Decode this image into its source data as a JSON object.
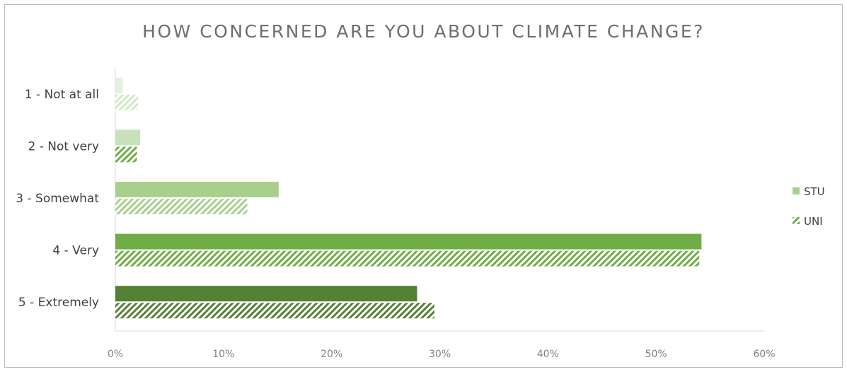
{
  "chart_data": {
    "type": "bar",
    "orientation": "horizontal",
    "title": "HOW CONCERNED ARE YOU ABOUT CLIMATE CHANGE?",
    "categories": [
      "1 - Not at all",
      "2 - Not very",
      "3 - Somewhat",
      "4 - Very",
      "5 - Extremely"
    ],
    "series": [
      {
        "name": "STU",
        "pattern": "solid",
        "values": [
          0.7,
          2.3,
          15.1,
          54.2,
          27.9
        ],
        "colors": [
          "#e4f1de",
          "#c7e2b9",
          "#a8d08d",
          "#70ad47",
          "#548235"
        ]
      },
      {
        "name": "UNI",
        "pattern": "hatched",
        "values": [
          2.1,
          2.0,
          12.2,
          54.0,
          29.5
        ],
        "colors": [
          "#d2e8c6",
          "#70ad47",
          "#a8d08d",
          "#70ad47",
          "#548235"
        ]
      }
    ],
    "xlim": [
      0,
      60
    ],
    "xticks": [
      "0%",
      "10%",
      "20%",
      "30%",
      "40%",
      "50%",
      "60%"
    ],
    "grid": false,
    "legend": "right",
    "legend_colors": [
      "#a8d08d",
      "#70ad47"
    ]
  }
}
